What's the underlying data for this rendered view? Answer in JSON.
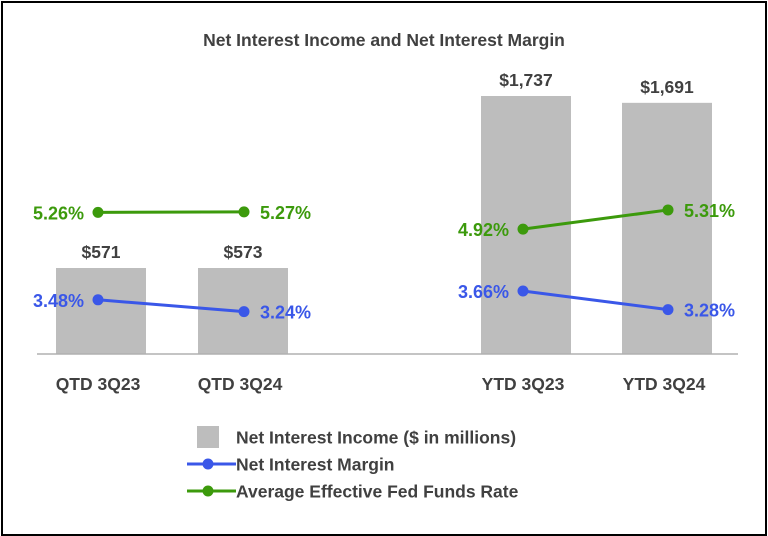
{
  "chart_data": {
    "type": "bar",
    "title": "Net Interest Income and Net Interest Margin",
    "categories": [
      "QTD 3Q23",
      "QTD 3Q24",
      "YTD 3Q23",
      "YTD 3Q24"
    ],
    "groups": [
      [
        "QTD 3Q23",
        "QTD 3Q24"
      ],
      [
        "YTD 3Q23",
        "YTD 3Q24"
      ]
    ],
    "series": [
      {
        "name": "Net Interest Income ($ in millions)",
        "kind": "bar",
        "color": "#bdbdbd",
        "values": [
          571,
          573,
          1737,
          1691
        ],
        "labels": [
          "$571",
          "$573",
          "$1,737",
          "$1,691"
        ]
      },
      {
        "name": "Net Interest Margin",
        "kind": "line",
        "color": "#3a57e8",
        "values": [
          3.48,
          3.24,
          3.66,
          3.28
        ],
        "labels": [
          "3.48%",
          "3.24%",
          "3.66%",
          "3.28%"
        ]
      },
      {
        "name": "Average Effective Fed Funds Rate",
        "kind": "line",
        "color": "#3c9a0c",
        "values": [
          5.26,
          5.27,
          4.92,
          5.31
        ],
        "labels": [
          "5.26%",
          "5.27%",
          "4.92%",
          "5.31%"
        ]
      }
    ],
    "bar_ylim": [
      0,
      1880
    ],
    "legend_position": "bottom-center",
    "grid": false
  }
}
